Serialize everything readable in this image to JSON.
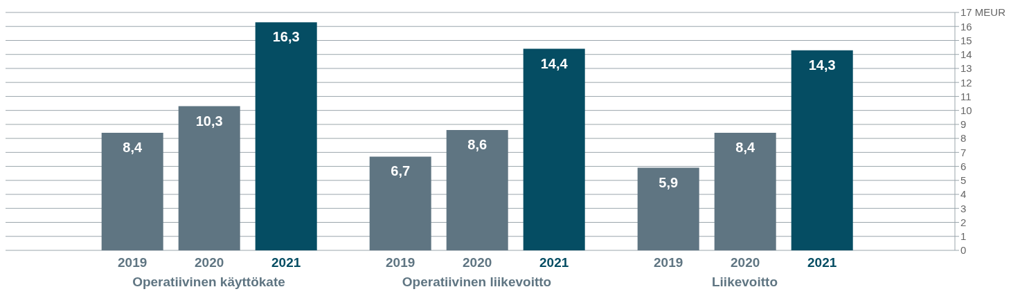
{
  "chart_data": {
    "type": "bar",
    "categories": [
      "Operatiivinen käyttökate",
      "Operatiivinen liikevoitto",
      "Liikevoitto"
    ],
    "series": [
      {
        "name": "2019",
        "color": "#5f7582",
        "values": [
          8.4,
          6.7,
          5.9
        ],
        "value_labels": [
          "8,4",
          "6,7",
          "5,9"
        ]
      },
      {
        "name": "2020",
        "color": "#5f7582",
        "values": [
          10.3,
          8.6,
          8.4
        ],
        "value_labels": [
          "10,3",
          "8,6",
          "8,4"
        ]
      },
      {
        "name": "2021",
        "color": "#054d63",
        "values": [
          16.3,
          14.4,
          14.3
        ],
        "value_labels": [
          "16,3",
          "14,4",
          "14,3"
        ]
      }
    ],
    "ylim": [
      0,
      17
    ],
    "yticks": [
      0,
      1,
      2,
      3,
      4,
      5,
      6,
      7,
      8,
      9,
      10,
      11,
      12,
      13,
      14,
      15,
      16,
      {
        "value": 17,
        "label": "17 MEUR"
      }
    ],
    "grid": "y",
    "legend": false
  }
}
